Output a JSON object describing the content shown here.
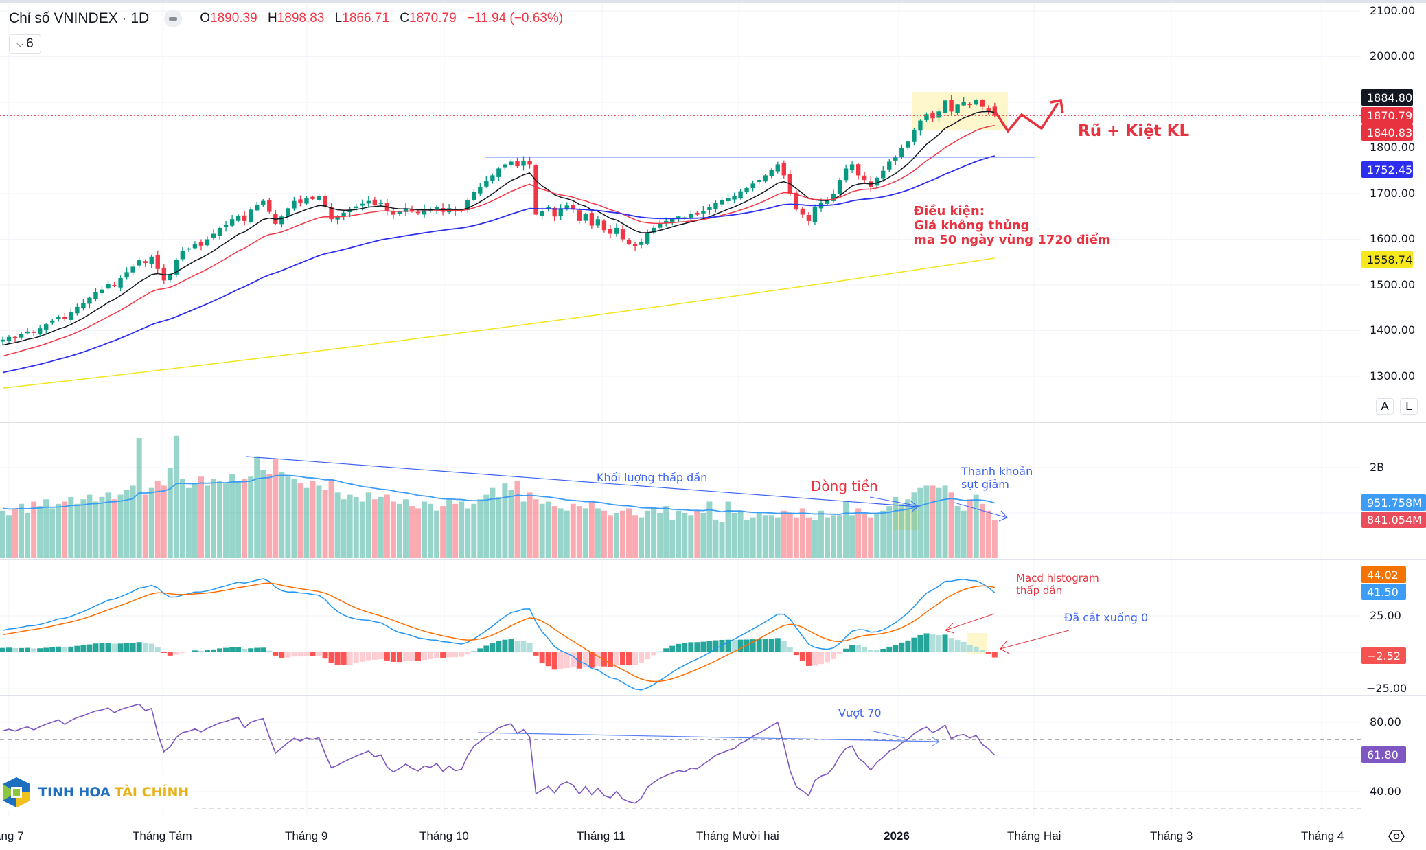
{
  "header": {
    "title": "Chỉ số VNINDEX · 1D",
    "o_label": "O",
    "o": "1890.39",
    "h_label": "H",
    "h": "1898.83",
    "l_label": "L",
    "l": "1866.71",
    "c_label": "C",
    "c": "1870.79",
    "change": "−11.94 (−0.63%)",
    "collapse_count": "6"
  },
  "price_axis": [
    "2100.00",
    "2000.00",
    "1800.00",
    "1700.00",
    "1600.00",
    "1500.00",
    "1400.00",
    "1300.00"
  ],
  "volume_axis": [
    "2B"
  ],
  "macd_axis": [
    "25.00",
    "−25.00"
  ],
  "rsi_axis": [
    "80.00",
    "40.00"
  ],
  "badges": {
    "ma10": "1884.80",
    "close": "1870.79",
    "ma20": "1840.83",
    "ma50": "1752.45",
    "ma200": "1558.74",
    "vol_ma": "951.758M",
    "vol": "841.054M",
    "signal": "44.02",
    "macd": "41.50",
    "hist": "−2.52",
    "rsi": "61.80"
  },
  "colors": {
    "up": "#089981",
    "down": "#f23645",
    "ma10": "#131722",
    "ma20": "#f23645",
    "ma50": "#2e2ef0",
    "ma200": "#f2e51b",
    "macd": "#2196f3",
    "signal": "#ff6d00",
    "rsi": "#7e57c2",
    "annotation_red": "#e8323f",
    "annotation_blue": "#3d63f5"
  },
  "time_axis": [
    "áng 7",
    "Tháng Tám",
    "Tháng 9",
    "Tháng 10",
    "Tháng 11",
    "Tháng Mười hai",
    "2026",
    "Tháng Hai",
    "Tháng 3",
    "Tháng 4"
  ],
  "scale_buttons": {
    "auto": "A",
    "log": "L"
  },
  "annotations": {
    "shakeout": "Rũ + Kiệt KL",
    "condition": "Điều kiện:\nGiá không thủng\nma 50 ngày vùng 1720 điểm",
    "volume_lower": "Khối lượng thấp dần",
    "money_flow": "Dòng tiền",
    "liquidity": "Thanh khoản\nsụt giảm",
    "macd_hist": "Macd histogram\nthấp dần",
    "cut_zero": "Đã cắt xuống 0",
    "rsi_over": "Vượt 70"
  },
  "logo": {
    "brand_a": "TINH HOA",
    "brand_b": "TÀI CHÍNH"
  },
  "chart_data": {
    "type": "candlestick",
    "symbol": "VNINDEX",
    "interval": "1D",
    "ylim": [
      1200,
      2120
    ],
    "close": [
      1380,
      1386,
      1384,
      1392,
      1398,
      1395,
      1405,
      1414,
      1422,
      1430,
      1426,
      1440,
      1452,
      1460,
      1472,
      1484,
      1490,
      1502,
      1498,
      1515,
      1528,
      1540,
      1554,
      1548,
      1562,
      1535,
      1510,
      1524,
      1555,
      1574,
      1580,
      1590,
      1586,
      1600,
      1612,
      1625,
      1632,
      1644,
      1652,
      1640,
      1665,
      1676,
      1684,
      1660,
      1634,
      1650,
      1668,
      1684,
      1680,
      1690,
      1688,
      1694,
      1670,
      1644,
      1650,
      1658,
      1665,
      1672,
      1678,
      1684,
      1676,
      1680,
      1662,
      1654,
      1660,
      1668,
      1662,
      1658,
      1666,
      1664,
      1670,
      1660,
      1668,
      1662,
      1664,
      1685,
      1704,
      1715,
      1728,
      1740,
      1755,
      1764,
      1770,
      1760,
      1772,
      1764,
      1654,
      1662,
      1670,
      1650,
      1668,
      1674,
      1665,
      1640,
      1655,
      1630,
      1644,
      1620,
      1612,
      1625,
      1600,
      1590,
      1585,
      1594,
      1615,
      1625,
      1634,
      1640,
      1645,
      1650,
      1648,
      1655,
      1654,
      1662,
      1670,
      1680,
      1685,
      1690,
      1694,
      1705,
      1712,
      1722,
      1730,
      1740,
      1752,
      1764,
      1740,
      1700,
      1665,
      1654,
      1640,
      1670,
      1680,
      1684,
      1700,
      1730,
      1755,
      1764,
      1740,
      1730,
      1714,
      1735,
      1750,
      1770,
      1780,
      1800,
      1814,
      1840,
      1860,
      1874,
      1865,
      1880,
      1904,
      1880,
      1895,
      1900,
      1894,
      1905,
      1890,
      1882,
      1870.79
    ],
    "last_open": 1890.39,
    "last_high": 1898.83,
    "last_low": 1866.71,
    "volume_billions": [
      1.05,
      0.95,
      1.1,
      1.2,
      1.0,
      1.25,
      1.15,
      1.3,
      1.1,
      1.2,
      1.25,
      1.35,
      1.2,
      1.3,
      1.4,
      1.25,
      1.35,
      1.45,
      1.3,
      1.4,
      1.5,
      1.6,
      2.65,
      1.4,
      1.55,
      1.7,
      1.6,
      2.0,
      2.7,
      1.75,
      1.55,
      1.65,
      1.8,
      1.6,
      1.75,
      1.7,
      1.65,
      1.85,
      1.7,
      1.75,
      1.8,
      2.25,
      1.95,
      1.85,
      2.2,
      1.9,
      1.8,
      1.75,
      1.65,
      1.55,
      1.7,
      1.6,
      1.5,
      1.75,
      1.45,
      1.3,
      1.4,
      1.35,
      1.25,
      1.45,
      1.3,
      1.35,
      1.4,
      1.25,
      1.2,
      1.3,
      1.15,
      1.1,
      1.25,
      1.2,
      1.05,
      1.15,
      1.3,
      1.2,
      1.25,
      1.1,
      1.2,
      1.3,
      1.4,
      1.55,
      1.35,
      1.65,
      1.5,
      1.7,
      1.25,
      1.45,
      1.3,
      1.2,
      1.25,
      1.15,
      1.1,
      1.05,
      1.2,
      1.15,
      1.1,
      1.25,
      1.1,
      1.05,
      0.95,
      1.0,
      1.05,
      1.1,
      0.95,
      0.9,
      1.05,
      1.1,
      1.0,
      1.15,
      0.85,
      1.05,
      1.0,
      0.95,
      1.05,
      1.0,
      1.25,
      0.85,
      0.8,
      1.25,
      1.0,
      1.05,
      0.85,
      0.9,
      1.0,
      0.95,
      0.95,
      0.9,
      1.05,
      1.0,
      0.9,
      1.1,
      0.9,
      0.85,
      1.05,
      0.9,
      0.95,
      0.95,
      1.25,
      0.95,
      1.1,
      1.0,
      0.9,
      1.0,
      1.05,
      1.15,
      1.35,
      1.2,
      1.3,
      1.45,
      1.55,
      1.6,
      1.6,
      1.55,
      1.6,
      1.45,
      1.15,
      1.05,
      1.3,
      1.4,
      1.2,
      1.05,
      0.84
    ],
    "moving_averages": [
      {
        "name": "MA10",
        "start": 1368,
        "last": 1884.8
      },
      {
        "name": "MA20",
        "start": 1344,
        "last": 1840.83
      },
      {
        "name": "MA50",
        "start": 1308,
        "last": 1752.45
      },
      {
        "name": "MA200",
        "start": 1274,
        "last": 1558.74
      }
    ],
    "resistance_level": 1780,
    "rsi_levels": [
      70,
      30
    ]
  }
}
